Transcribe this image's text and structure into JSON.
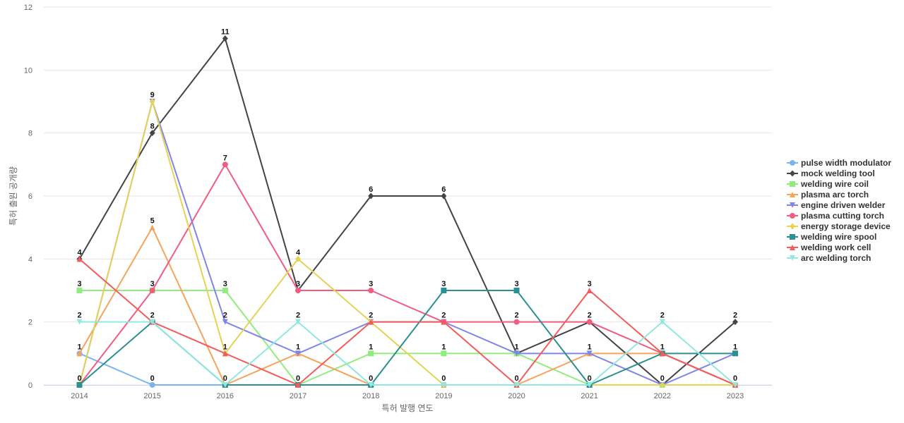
{
  "chart_data": {
    "type": "line",
    "title": "",
    "xlabel": "특허 발행 연도",
    "ylabel": "특허 출원 공개량",
    "ylim": [
      0,
      12
    ],
    "yticks": [
      0,
      2,
      4,
      6,
      8,
      10,
      12
    ],
    "x": [
      "2014",
      "2015",
      "2016",
      "2017",
      "2018",
      "2019",
      "2020",
      "2021",
      "2022",
      "2023"
    ],
    "grid": true,
    "legend_position": "right",
    "series": [
      {
        "name": "pulse width modulator",
        "color": "#7cb5ec",
        "marker": "circle",
        "values": [
          1,
          0,
          0,
          0,
          0,
          0,
          0,
          0,
          0,
          0
        ]
      },
      {
        "name": "mock welding tool",
        "color": "#434348",
        "marker": "diamond",
        "values": [
          4,
          8,
          11,
          3,
          6,
          6,
          1,
          2,
          0,
          2
        ]
      },
      {
        "name": "welding wire coil",
        "color": "#90ed7d",
        "marker": "square",
        "values": [
          3,
          3,
          3,
          0,
          1,
          1,
          1,
          0,
          0,
          0
        ]
      },
      {
        "name": "plasma arc torch",
        "color": "#f7a35c",
        "marker": "triangle",
        "values": [
          1,
          5,
          0,
          1,
          0,
          0,
          0,
          1,
          1,
          0
        ]
      },
      {
        "name": "engine driven welder",
        "color": "#8085e9",
        "marker": "triangle-down",
        "values": [
          0,
          9,
          2,
          1,
          2,
          2,
          1,
          1,
          0,
          1
        ]
      },
      {
        "name": "plasma cutting torch",
        "color": "#f15c80",
        "marker": "circle",
        "values": [
          0,
          3,
          7,
          3,
          3,
          2,
          2,
          2,
          1,
          0
        ]
      },
      {
        "name": "energy storage device",
        "color": "#e4d354",
        "marker": "diamond",
        "values": [
          0,
          9,
          1,
          4,
          2,
          0,
          0,
          0,
          0,
          0
        ]
      },
      {
        "name": "welding wire spool",
        "color": "#2b908f",
        "marker": "square",
        "values": [
          0,
          2,
          0,
          0,
          0,
          3,
          3,
          0,
          1,
          1
        ]
      },
      {
        "name": "welding work cell",
        "color": "#f45b5b",
        "marker": "triangle",
        "values": [
          4,
          2,
          1,
          0,
          2,
          2,
          0,
          3,
          1,
          0
        ]
      },
      {
        "name": "arc welding torch",
        "color": "#91e8e1",
        "marker": "triangle-down",
        "values": [
          2,
          2,
          0,
          2,
          0,
          0,
          0,
          0,
          2,
          0
        ]
      }
    ],
    "data_labels": [
      {
        "x": "2014",
        "values": [
          4,
          3,
          2,
          1,
          0
        ]
      },
      {
        "x": "2015",
        "values": [
          9,
          8,
          5,
          3,
          2,
          0
        ]
      },
      {
        "x": "2016",
        "values": [
          11,
          7,
          3,
          2,
          1,
          0
        ]
      },
      {
        "x": "2017",
        "values": [
          4,
          3,
          2,
          1,
          0
        ]
      },
      {
        "x": "2018",
        "values": [
          6,
          3,
          2,
          1,
          0
        ]
      },
      {
        "x": "2019",
        "values": [
          6,
          3,
          2,
          1,
          0
        ]
      },
      {
        "x": "2020",
        "values": [
          3,
          2,
          1,
          0
        ]
      },
      {
        "x": "2021",
        "values": [
          3,
          2,
          1,
          0
        ]
      },
      {
        "x": "2022",
        "values": [
          2,
          1,
          0
        ]
      },
      {
        "x": "2023",
        "values": [
          2,
          1,
          0
        ]
      }
    ]
  }
}
